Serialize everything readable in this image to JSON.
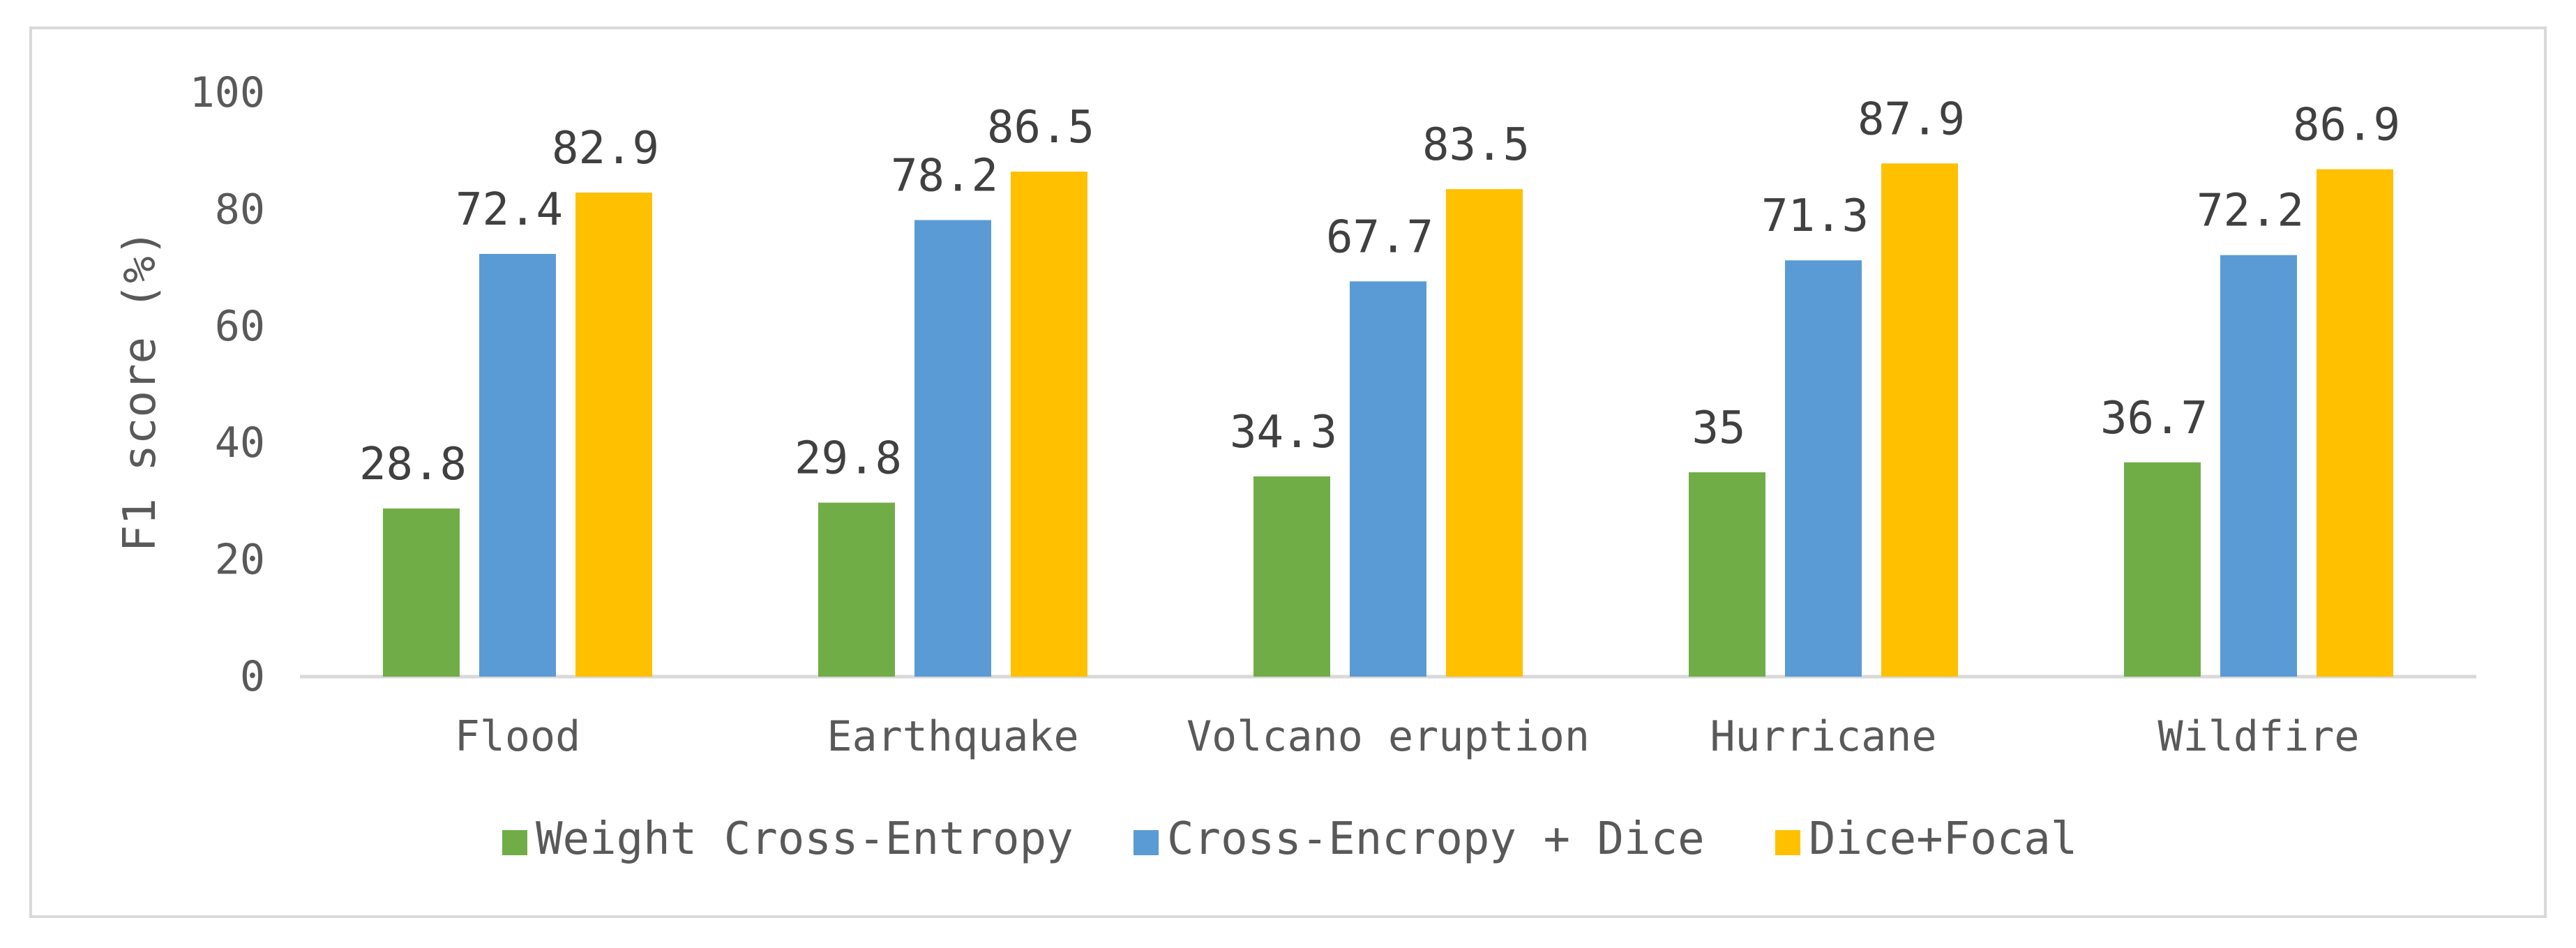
{
  "chart_data": {
    "type": "bar",
    "title": "",
    "xlabel": "",
    "ylabel": "F1 score (%)",
    "ylim": [
      0,
      100
    ],
    "yticks": [
      "0",
      "20",
      "40",
      "60",
      "80",
      "100"
    ],
    "gridlines": false,
    "legend_position": "bottom",
    "categories": [
      "Flood",
      "Earthquake",
      "Volcano eruption",
      "Hurricane",
      "Wildfire"
    ],
    "series": [
      {
        "name": "Weight Cross-Entropy",
        "color": "#70ad47",
        "values": [
          28.8,
          29.8,
          34.3,
          35,
          36.7
        ],
        "labels": [
          "28.8",
          "29.8",
          "34.3",
          "35",
          "36.7"
        ]
      },
      {
        "name": "Cross-Encropy + Dice",
        "color": "#5b9bd5",
        "values": [
          72.4,
          78.2,
          67.7,
          71.3,
          72.2
        ],
        "labels": [
          "72.4",
          "78.2",
          "67.7",
          "71.3",
          "72.2"
        ]
      },
      {
        "name": "Dice+Focal",
        "color": "#ffc000",
        "values": [
          82.9,
          86.5,
          83.5,
          87.9,
          86.9
        ],
        "labels": [
          "82.9",
          "86.5",
          "83.5",
          "87.9",
          "86.9"
        ]
      }
    ],
    "axis_color": "#d9d9d9"
  }
}
